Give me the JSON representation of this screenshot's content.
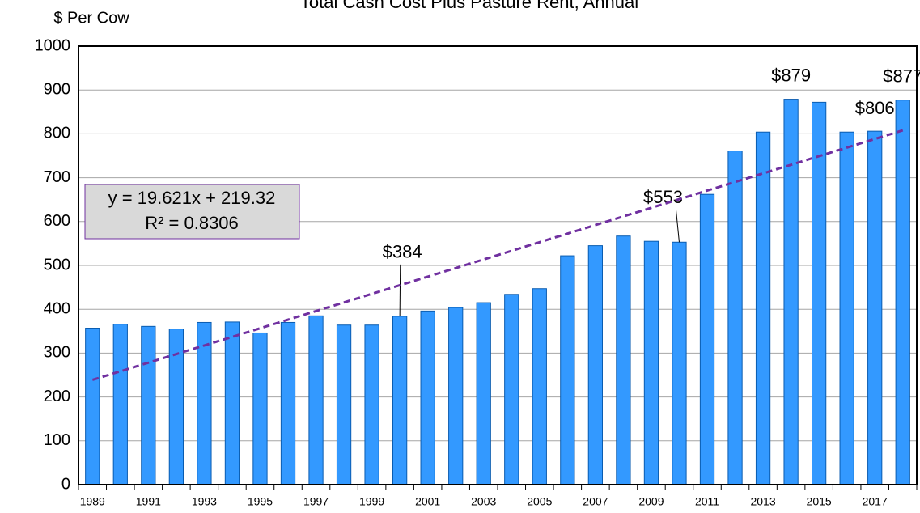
{
  "chart_data": {
    "type": "bar",
    "title": "Total Cash Cost Plus Pasture Rent, Annual",
    "y_axis_label": "$ Per Cow",
    "categories": [
      "1989",
      null,
      "1991",
      null,
      "1993",
      null,
      "1995",
      null,
      "1997",
      null,
      "1999",
      null,
      "2001",
      null,
      "2003",
      null,
      "2005",
      null,
      "2007",
      null,
      "2009",
      null,
      "2011",
      null,
      "2013",
      null,
      "2015",
      null,
      "2017",
      null
    ],
    "values": [
      357,
      366,
      361,
      355,
      370,
      371,
      346,
      370,
      385,
      364,
      364,
      384,
      396,
      404,
      415,
      434,
      447,
      522,
      545,
      567,
      555,
      553,
      662,
      761,
      804,
      879,
      872,
      804,
      806,
      877
    ],
    "value_labels": [
      null,
      null,
      null,
      null,
      null,
      null,
      null,
      null,
      null,
      null,
      null,
      "$384",
      null,
      null,
      null,
      null,
      null,
      null,
      null,
      null,
      null,
      "$553",
      null,
      null,
      null,
      "$879",
      null,
      null,
      "$806",
      "$877"
    ],
    "color": "#3399ff",
    "ylim": [
      0,
      1000
    ],
    "yticks": [
      0,
      100,
      200,
      300,
      400,
      500,
      600,
      700,
      800,
      900,
      1000
    ],
    "grid": true,
    "trendline": {
      "slope": 19.621,
      "intercept": 219.32,
      "color": "#7030a0",
      "equation": "y = 19.621x + 219.32",
      "r_squared": "R² = 0.8306"
    }
  }
}
